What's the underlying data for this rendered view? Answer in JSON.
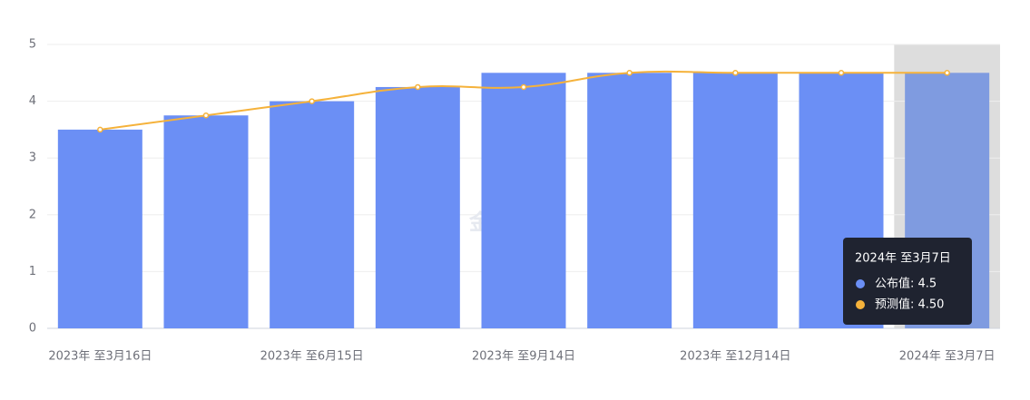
{
  "chart_data": {
    "type": "bar-line",
    "categories": [
      "2023年 至3月16日",
      null,
      "2023年 至6月15日",
      null,
      "2023年 至9月14日",
      null,
      "2023年 至12月14日",
      null,
      "2024年 至3月7日"
    ],
    "series": [
      {
        "name": "公布值",
        "type": "bar",
        "color": "#6b8ff5",
        "values": [
          3.5,
          3.75,
          4,
          4.25,
          4.5,
          4.5,
          4.5,
          4.5,
          4.5
        ]
      },
      {
        "name": "预测值",
        "type": "line",
        "color": "#f5b23b",
        "values": [
          3.5,
          3.75,
          4,
          4.25,
          4.25,
          4.5,
          4.5,
          4.5,
          4.5
        ]
      }
    ],
    "ylim": [
      0,
      5
    ],
    "yticks": [
      0,
      1,
      2,
      3,
      4,
      5
    ],
    "grid": true,
    "highlight_index": 8,
    "watermark": "金十数据",
    "tooltip": {
      "title": "2024年 至3月7日",
      "items": [
        "公布值: 4.5",
        "预测值: 4.50"
      ]
    }
  }
}
